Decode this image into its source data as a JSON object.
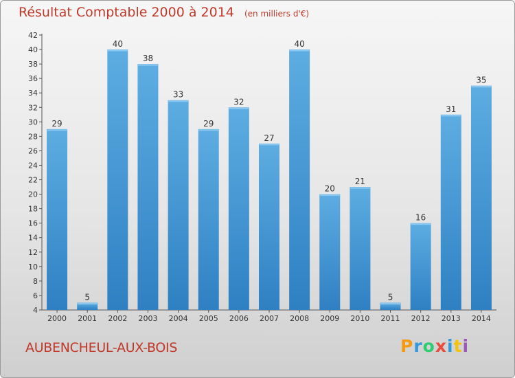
{
  "title": "Résultat Comptable 2000 à 2014",
  "subtitle": "(en milliers d'€)",
  "commune": "AUBENCHEUL-AUX-BOIS",
  "brand": {
    "letters": [
      "P",
      "r",
      "o",
      "x",
      "i",
      "t",
      "i"
    ],
    "colors": [
      "#f39c12",
      "#3498db",
      "#2ecc71",
      "#e74c3c",
      "#3498db",
      "#f1c40f",
      "#9b59b6"
    ]
  },
  "colors": {
    "bar_light": "#5dade2",
    "bar_dark": "#2e80c2",
    "text": "#333333",
    "title": "#c0392b"
  },
  "chart_data": {
    "type": "bar",
    "categories": [
      "2000",
      "2001",
      "2002",
      "2003",
      "2004",
      "2005",
      "2006",
      "2007",
      "2008",
      "2009",
      "2010",
      "2011",
      "2012",
      "2013",
      "2014"
    ],
    "values": [
      29,
      5,
      40,
      38,
      33,
      29,
      32,
      27,
      40,
      20,
      21,
      5,
      16,
      31,
      35
    ],
    "title": "Résultat Comptable 2000 à 2014",
    "xlabel": "",
    "ylabel": "",
    "ylim": [
      4,
      42
    ],
    "yticks": [
      4,
      6,
      8,
      10,
      12,
      14,
      16,
      18,
      20,
      22,
      24,
      26,
      28,
      30,
      32,
      34,
      36,
      38,
      40,
      42
    ],
    "grid": false,
    "legend": "none"
  }
}
